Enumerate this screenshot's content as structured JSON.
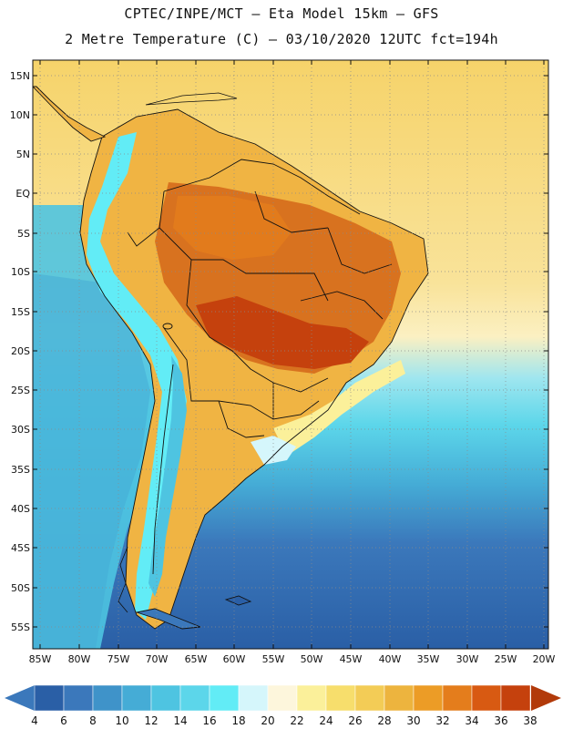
{
  "header": {
    "line1": "CPTEC/INPE/MCT –  Eta Model 15km – GFS",
    "line2": "2 Metre Temperature (C) – 03/10/2020 12UTC fct=194h"
  },
  "map": {
    "lat_labels": [
      "15N",
      "10N",
      "5N",
      "EQ",
      "5S",
      "10S",
      "15S",
      "20S",
      "25S",
      "30S",
      "35S",
      "40S",
      "45S",
      "50S",
      "55S"
    ],
    "lon_labels": [
      "85W",
      "80W",
      "75W",
      "70W",
      "65W",
      "60W",
      "55W",
      "50W",
      "45W",
      "40W",
      "35W",
      "30W",
      "25W",
      "20W"
    ]
  },
  "colorbar": {
    "levels": [
      "4",
      "6",
      "8",
      "10",
      "12",
      "14",
      "16",
      "18",
      "20",
      "22",
      "24",
      "26",
      "28",
      "30",
      "32",
      "34",
      "36",
      "38"
    ],
    "colors": [
      "#2a5fa6",
      "#3b78bb",
      "#3f93c9",
      "#45acd6",
      "#4ec4e1",
      "#5cd6ea",
      "#62ecf6",
      "#d5f6fb",
      "#fdf6dc",
      "#fbf09a",
      "#f7de6c",
      "#f3cc56",
      "#edb43e",
      "#ec9c26",
      "#e47d1c",
      "#d85a12",
      "#c5410d",
      "#a83209"
    ],
    "low_color": "#3b78bb",
    "high_color": "#b23a0a"
  },
  "colors": {
    "ocean_north": "#f5cf66",
    "ocean_mid": "#62dcea",
    "ocean_south": "#2f67aa",
    "land_hot": "#d8721f",
    "land_warm": "#f0b443",
    "andes_cold": "#4ec4e1"
  }
}
